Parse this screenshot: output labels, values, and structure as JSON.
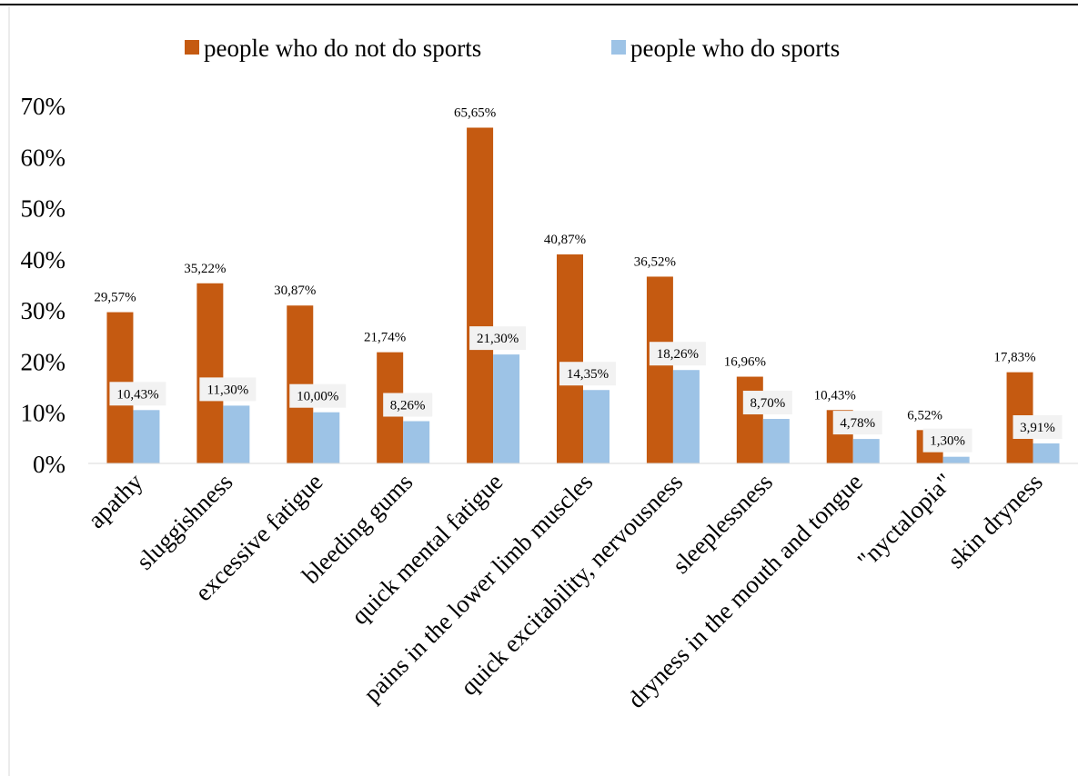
{
  "chart_data": {
    "type": "bar",
    "categories": [
      "apathy",
      "sluggishness",
      "excessive fatigue",
      "bleeding gums",
      "quick mental fatigue",
      "pains in the lower limb muscles",
      "quick excitability, nervousness",
      "sleeplessness",
      "dryness in the mouth and tongue",
      "\"nyctalopia\"",
      "skin dryness"
    ],
    "series": [
      {
        "name": "people who do not do sports",
        "color": "#C55A11",
        "values": [
          29.57,
          35.22,
          30.87,
          21.74,
          65.65,
          40.87,
          36.52,
          16.96,
          10.43,
          6.52,
          17.83
        ],
        "labels": [
          "29,57%",
          "35,22%",
          "30,87%",
          "21,74%",
          "65,65%",
          "40,87%",
          "36,52%",
          "16,96%",
          "10,43%",
          "6,52%",
          "17,83%"
        ]
      },
      {
        "name": "people who do sports",
        "color": "#9DC3E6",
        "values": [
          10.43,
          11.3,
          10.0,
          8.26,
          21.3,
          14.35,
          18.26,
          8.7,
          4.78,
          1.3,
          3.91
        ],
        "labels": [
          "10,43%",
          "11,30%",
          "10,00%",
          "8,26%",
          "21,30%",
          "14,35%",
          "18,26%",
          "8,70%",
          "4,78%",
          "1,30%",
          "3,91%"
        ]
      }
    ],
    "ylim": [
      0,
      70
    ],
    "yticks": [
      "0%",
      "10%",
      "20%",
      "30%",
      "40%",
      "50%",
      "60%",
      "70%"
    ],
    "legend_position": "top",
    "grid": false
  }
}
